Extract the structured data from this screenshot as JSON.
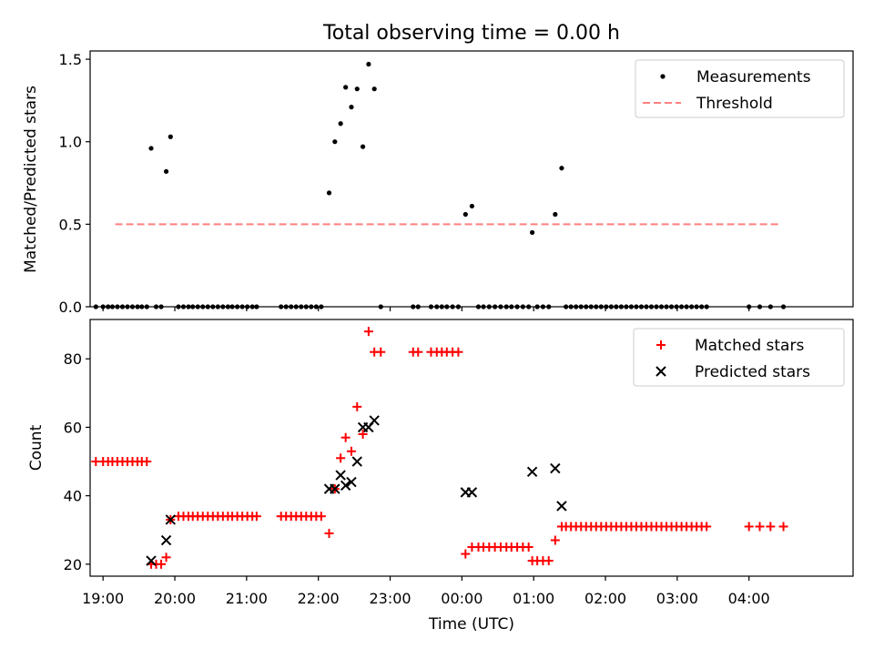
{
  "title": "Total observing time = 0.00 h",
  "chart_data": [
    {
      "type": "scatter",
      "ylabel": "Matched/Predicted stars",
      "xlim": [
        -0.18,
        10.45
      ],
      "ylim": [
        0,
        1.55
      ],
      "yticks": [
        0,
        0.5,
        1.0,
        1.5
      ],
      "yticklabels": [
        "0.0",
        "0.5",
        "1.0",
        "1.5"
      ],
      "legend": {
        "placement": "top-right",
        "entries": [
          "Measurements",
          "Threshold"
        ]
      },
      "threshold": {
        "name": "Threshold",
        "value": 0.5,
        "x": [
          0.17,
          9.45
        ],
        "color": "#ff7f7f"
      },
      "series": [
        {
          "name": "Measurements",
          "color": "#000000",
          "points": [
            [
              -0.1,
              0
            ],
            [
              0,
              0
            ],
            [
              0.07,
              0
            ],
            [
              0.13,
              0
            ],
            [
              0.2,
              0
            ],
            [
              0.27,
              0
            ],
            [
              0.34,
              0
            ],
            [
              0.41,
              0
            ],
            [
              0.48,
              0
            ],
            [
              0.54,
              0
            ],
            [
              0.61,
              0
            ],
            [
              0.67,
              0.96
            ],
            [
              0.74,
              0
            ],
            [
              0.81,
              0
            ],
            [
              0.88,
              0.82
            ],
            [
              0.94,
              1.03
            ],
            [
              1.05,
              0
            ],
            [
              1.12,
              0
            ],
            [
              1.19,
              0
            ],
            [
              1.25,
              0
            ],
            [
              1.32,
              0
            ],
            [
              1.39,
              0
            ],
            [
              1.46,
              0
            ],
            [
              1.53,
              0
            ],
            [
              1.6,
              0
            ],
            [
              1.67,
              0
            ],
            [
              1.74,
              0
            ],
            [
              1.8,
              0
            ],
            [
              1.87,
              0
            ],
            [
              1.94,
              0
            ],
            [
              2.01,
              0
            ],
            [
              2.08,
              0
            ],
            [
              2.14,
              0
            ],
            [
              2.48,
              0
            ],
            [
              2.55,
              0
            ],
            [
              2.62,
              0
            ],
            [
              2.69,
              0
            ],
            [
              2.76,
              0
            ],
            [
              2.83,
              0
            ],
            [
              2.9,
              0
            ],
            [
              2.97,
              0
            ],
            [
              3.04,
              0
            ],
            [
              3.15,
              0.69
            ],
            [
              3.23,
              1.0
            ],
            [
              3.31,
              1.11
            ],
            [
              3.38,
              1.33
            ],
            [
              3.46,
              1.21
            ],
            [
              3.54,
              1.32
            ],
            [
              3.62,
              0.97
            ],
            [
              3.7,
              1.47
            ],
            [
              3.78,
              1.32
            ],
            [
              3.87,
              0
            ],
            [
              4.32,
              0
            ],
            [
              4.39,
              0
            ],
            [
              4.57,
              0
            ],
            [
              4.65,
              0
            ],
            [
              4.72,
              0
            ],
            [
              4.79,
              0
            ],
            [
              4.87,
              0
            ],
            [
              4.95,
              0
            ],
            [
              5.05,
              0.56
            ],
            [
              5.14,
              0.61
            ],
            [
              5.23,
              0
            ],
            [
              5.3,
              0
            ],
            [
              5.38,
              0
            ],
            [
              5.46,
              0
            ],
            [
              5.54,
              0
            ],
            [
              5.62,
              0
            ],
            [
              5.69,
              0
            ],
            [
              5.77,
              0
            ],
            [
              5.85,
              0
            ],
            [
              5.93,
              0
            ],
            [
              5.98,
              0.45
            ],
            [
              6.05,
              0
            ],
            [
              6.13,
              0
            ],
            [
              6.21,
              0
            ],
            [
              6.3,
              0.56
            ],
            [
              6.39,
              0.84
            ],
            [
              6.45,
              0
            ],
            [
              6.52,
              0
            ],
            [
              6.59,
              0
            ],
            [
              6.66,
              0
            ],
            [
              6.73,
              0
            ],
            [
              6.8,
              0
            ],
            [
              6.87,
              0
            ],
            [
              6.94,
              0
            ],
            [
              7.01,
              0
            ],
            [
              7.08,
              0
            ],
            [
              7.15,
              0
            ],
            [
              7.22,
              0
            ],
            [
              7.29,
              0
            ],
            [
              7.36,
              0
            ],
            [
              7.43,
              0
            ],
            [
              7.5,
              0
            ],
            [
              7.57,
              0
            ],
            [
              7.64,
              0
            ],
            [
              7.71,
              0
            ],
            [
              7.78,
              0
            ],
            [
              7.85,
              0
            ],
            [
              7.92,
              0
            ],
            [
              7.99,
              0
            ],
            [
              8.06,
              0
            ],
            [
              8.13,
              0
            ],
            [
              8.2,
              0
            ],
            [
              8.27,
              0
            ],
            [
              8.34,
              0
            ],
            [
              8.41,
              0
            ],
            [
              9.0,
              0
            ],
            [
              9.15,
              0
            ],
            [
              9.3,
              0
            ],
            [
              9.48,
              0
            ]
          ]
        }
      ]
    },
    {
      "type": "scatter",
      "xlabel": "Time (UTC)",
      "ylabel": "Count",
      "xlim": [
        -0.18,
        10.45
      ],
      "ylim": [
        16.5,
        91.5
      ],
      "yticks": [
        20,
        40,
        60,
        80
      ],
      "yticklabels": [
        "20",
        "40",
        "60",
        "80"
      ],
      "xticks": [
        0,
        1,
        2,
        3,
        4,
        5,
        6,
        7,
        8,
        9
      ],
      "xticklabels": [
        "19:00",
        "20:00",
        "21:00",
        "22:00",
        "23:00",
        "00:00",
        "01:00",
        "02:00",
        "03:00",
        "04:00"
      ],
      "legend": {
        "placement": "top-right",
        "entries": [
          "Matched stars",
          "Predicted stars"
        ]
      },
      "series": [
        {
          "name": "Matched stars",
          "marker": "plus",
          "color": "#ff0000",
          "points": [
            [
              -0.1,
              50
            ],
            [
              0,
              50
            ],
            [
              0.07,
              50
            ],
            [
              0.13,
              50
            ],
            [
              0.2,
              50
            ],
            [
              0.27,
              50
            ],
            [
              0.34,
              50
            ],
            [
              0.41,
              50
            ],
            [
              0.48,
              50
            ],
            [
              0.54,
              50
            ],
            [
              0.61,
              50
            ],
            [
              0.67,
              20
            ],
            [
              0.74,
              20
            ],
            [
              0.81,
              20
            ],
            [
              0.88,
              22
            ],
            [
              0.94,
              33
            ],
            [
              1.05,
              34
            ],
            [
              1.12,
              34
            ],
            [
              1.19,
              34
            ],
            [
              1.25,
              34
            ],
            [
              1.32,
              34
            ],
            [
              1.39,
              34
            ],
            [
              1.46,
              34
            ],
            [
              1.53,
              34
            ],
            [
              1.6,
              34
            ],
            [
              1.67,
              34
            ],
            [
              1.74,
              34
            ],
            [
              1.8,
              34
            ],
            [
              1.87,
              34
            ],
            [
              1.94,
              34
            ],
            [
              2.01,
              34
            ],
            [
              2.08,
              34
            ],
            [
              2.14,
              34
            ],
            [
              2.48,
              34
            ],
            [
              2.55,
              34
            ],
            [
              2.62,
              34
            ],
            [
              2.69,
              34
            ],
            [
              2.76,
              34
            ],
            [
              2.83,
              34
            ],
            [
              2.9,
              34
            ],
            [
              2.97,
              34
            ],
            [
              3.04,
              34
            ],
            [
              3.15,
              29
            ],
            [
              3.23,
              42
            ],
            [
              3.31,
              51
            ],
            [
              3.38,
              57
            ],
            [
              3.46,
              53
            ],
            [
              3.54,
              66
            ],
            [
              3.62,
              58
            ],
            [
              3.7,
              88
            ],
            [
              3.78,
              82
            ],
            [
              3.87,
              82
            ],
            [
              4.32,
              82
            ],
            [
              4.39,
              82
            ],
            [
              4.57,
              82
            ],
            [
              4.65,
              82
            ],
            [
              4.72,
              82
            ],
            [
              4.79,
              82
            ],
            [
              4.87,
              82
            ],
            [
              4.95,
              82
            ],
            [
              5.05,
              23
            ],
            [
              5.14,
              25
            ],
            [
              5.23,
              25
            ],
            [
              5.3,
              25
            ],
            [
              5.38,
              25
            ],
            [
              5.46,
              25
            ],
            [
              5.54,
              25
            ],
            [
              5.62,
              25
            ],
            [
              5.69,
              25
            ],
            [
              5.77,
              25
            ],
            [
              5.85,
              25
            ],
            [
              5.93,
              25
            ],
            [
              5.98,
              21
            ],
            [
              6.05,
              21
            ],
            [
              6.13,
              21
            ],
            [
              6.21,
              21
            ],
            [
              6.3,
              27
            ],
            [
              6.39,
              31
            ],
            [
              6.45,
              31
            ],
            [
              6.52,
              31
            ],
            [
              6.59,
              31
            ],
            [
              6.66,
              31
            ],
            [
              6.73,
              31
            ],
            [
              6.8,
              31
            ],
            [
              6.87,
              31
            ],
            [
              6.94,
              31
            ],
            [
              7.01,
              31
            ],
            [
              7.08,
              31
            ],
            [
              7.15,
              31
            ],
            [
              7.22,
              31
            ],
            [
              7.29,
              31
            ],
            [
              7.36,
              31
            ],
            [
              7.43,
              31
            ],
            [
              7.5,
              31
            ],
            [
              7.57,
              31
            ],
            [
              7.64,
              31
            ],
            [
              7.71,
              31
            ],
            [
              7.78,
              31
            ],
            [
              7.85,
              31
            ],
            [
              7.92,
              31
            ],
            [
              7.99,
              31
            ],
            [
              8.06,
              31
            ],
            [
              8.13,
              31
            ],
            [
              8.2,
              31
            ],
            [
              8.27,
              31
            ],
            [
              8.34,
              31
            ],
            [
              8.41,
              31
            ],
            [
              9.0,
              31
            ],
            [
              9.15,
              31
            ],
            [
              9.3,
              31
            ],
            [
              9.48,
              31
            ]
          ]
        },
        {
          "name": "Predicted stars",
          "marker": "x",
          "color": "#000000",
          "points": [
            [
              0.67,
              21
            ],
            [
              0.88,
              27
            ],
            [
              0.94,
              33
            ],
            [
              3.15,
              42
            ],
            [
              3.23,
              42
            ],
            [
              3.31,
              46
            ],
            [
              3.38,
              43
            ],
            [
              3.46,
              44
            ],
            [
              3.54,
              50
            ],
            [
              3.62,
              60
            ],
            [
              3.7,
              60
            ],
            [
              3.78,
              62
            ],
            [
              5.05,
              41
            ],
            [
              5.14,
              41
            ],
            [
              5.98,
              47
            ],
            [
              6.3,
              48
            ],
            [
              6.39,
              37
            ]
          ]
        }
      ]
    }
  ]
}
